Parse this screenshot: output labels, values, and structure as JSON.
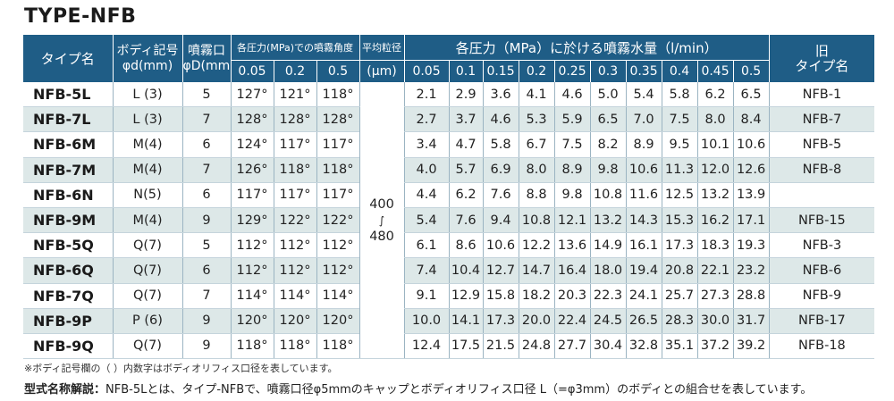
{
  "title": "TYPE-NFB",
  "header": {
    "type_name": "タイプ名",
    "body_symbol": "ボディ記号",
    "body_symbol_unit": "φd(mm)",
    "spray_port": "噴霧口",
    "spray_port_unit": "φD(mm)",
    "angle_group": "各圧力(MPa)での噴霧角度",
    "avg_particle": "平均粒径",
    "avg_particle_unit": "(μm)",
    "flow_group": "各圧力（MPa）に於ける噴霧水量（l/min）",
    "old_type_1": "旧",
    "old_type_2": "タイプ名",
    "angle_pressures": [
      "0.05",
      "0.2",
      "0.5"
    ],
    "flow_pressures": [
      "0.05",
      "0.1",
      "0.15",
      "0.2",
      "0.25",
      "0.3",
      "0.35",
      "0.4",
      "0.45",
      "0.5"
    ]
  },
  "particle_size": {
    "top": "400",
    "mid": "∫",
    "bottom": "480"
  },
  "rows": [
    {
      "name": "NFB-5L",
      "body": "L (3)",
      "port": "5",
      "angles": [
        "127°",
        "121°",
        "118°"
      ],
      "flows": [
        "2.1",
        "2.9",
        "3.6",
        "4.1",
        "4.6",
        "5.0",
        "5.4",
        "5.8",
        "6.2",
        "6.5"
      ],
      "old": "NFB-1"
    },
    {
      "name": "NFB-7L",
      "body": "L (3)",
      "port": "7",
      "angles": [
        "128°",
        "128°",
        "128°"
      ],
      "flows": [
        "2.7",
        "3.7",
        "4.6",
        "5.3",
        "5.9",
        "6.5",
        "7.0",
        "7.5",
        "8.0",
        "8.4"
      ],
      "old": "NFB-7"
    },
    {
      "name": "NFB-6M",
      "body": "M(4)",
      "port": "6",
      "angles": [
        "124°",
        "117°",
        "117°"
      ],
      "flows": [
        "3.4",
        "4.7",
        "5.8",
        "6.7",
        "7.5",
        "8.2",
        "8.9",
        "9.5",
        "10.1",
        "10.6"
      ],
      "old": "NFB-5"
    },
    {
      "name": "NFB-7M",
      "body": "M(4)",
      "port": "7",
      "angles": [
        "126°",
        "118°",
        "118°"
      ],
      "flows": [
        "4.0",
        "5.7",
        "6.9",
        "8.0",
        "8.9",
        "9.8",
        "10.6",
        "11.3",
        "12.0",
        "12.6"
      ],
      "old": "NFB-8"
    },
    {
      "name": "NFB-6N",
      "body": "N(5)",
      "port": "6",
      "angles": [
        "117°",
        "117°",
        "117°"
      ],
      "flows": [
        "4.4",
        "6.2",
        "7.6",
        "8.8",
        "9.8",
        "10.8",
        "11.6",
        "12.5",
        "13.2",
        "13.9"
      ],
      "old": ""
    },
    {
      "name": "NFB-9M",
      "body": "M(4)",
      "port": "9",
      "angles": [
        "129°",
        "122°",
        "122°"
      ],
      "flows": [
        "5.4",
        "7.6",
        "9.4",
        "10.8",
        "12.1",
        "13.2",
        "14.3",
        "15.3",
        "16.2",
        "17.1"
      ],
      "old": "NFB-15"
    },
    {
      "name": "NFB-5Q",
      "body": "Q(7)",
      "port": "5",
      "angles": [
        "112°",
        "112°",
        "112°"
      ],
      "flows": [
        "6.1",
        "8.6",
        "10.6",
        "12.2",
        "13.6",
        "14.9",
        "16.1",
        "17.3",
        "18.3",
        "19.3"
      ],
      "old": "NFB-3"
    },
    {
      "name": "NFB-6Q",
      "body": "Q(7)",
      "port": "6",
      "angles": [
        "112°",
        "112°",
        "112°"
      ],
      "flows": [
        "7.4",
        "10.4",
        "12.7",
        "14.7",
        "16.4",
        "18.0",
        "19.4",
        "20.8",
        "22.1",
        "23.2"
      ],
      "old": "NFB-6"
    },
    {
      "name": "NFB-7Q",
      "body": "Q(7)",
      "port": "7",
      "angles": [
        "114°",
        "114°",
        "114°"
      ],
      "flows": [
        "9.1",
        "12.9",
        "15.8",
        "18.2",
        "20.3",
        "22.3",
        "24.1",
        "25.7",
        "27.3",
        "28.8"
      ],
      "old": "NFB-9"
    },
    {
      "name": "NFB-9P",
      "body": "P (6)",
      "port": "9",
      "angles": [
        "120°",
        "120°",
        "120°"
      ],
      "flows": [
        "10.0",
        "14.1",
        "17.3",
        "20.0",
        "22.4",
        "24.5",
        "26.5",
        "28.3",
        "30.0",
        "31.7"
      ],
      "old": "NFB-17"
    },
    {
      "name": "NFB-9Q",
      "body": "Q(7)",
      "port": "9",
      "angles": [
        "118°",
        "118°",
        "118°"
      ],
      "flows": [
        "12.4",
        "17.5",
        "21.5",
        "24.8",
        "27.7",
        "30.4",
        "32.8",
        "35.1",
        "37.2",
        "39.2"
      ],
      "old": "NFB-18"
    }
  ],
  "note": "※ボディ記号欄の（ ）内数字はボディオリフィス口径を表しています。",
  "description_label": "型式名称解説：",
  "description_text": "NFB-5Lとは、タイプ-NFBで、噴霧口径φ5mmのキャップとボディオリフィス口径 L（=φ3mm）のボディとの組合せを表しています。",
  "colors": {
    "header_bg": "#1f5d86",
    "row_alt": "#dde8e8"
  }
}
